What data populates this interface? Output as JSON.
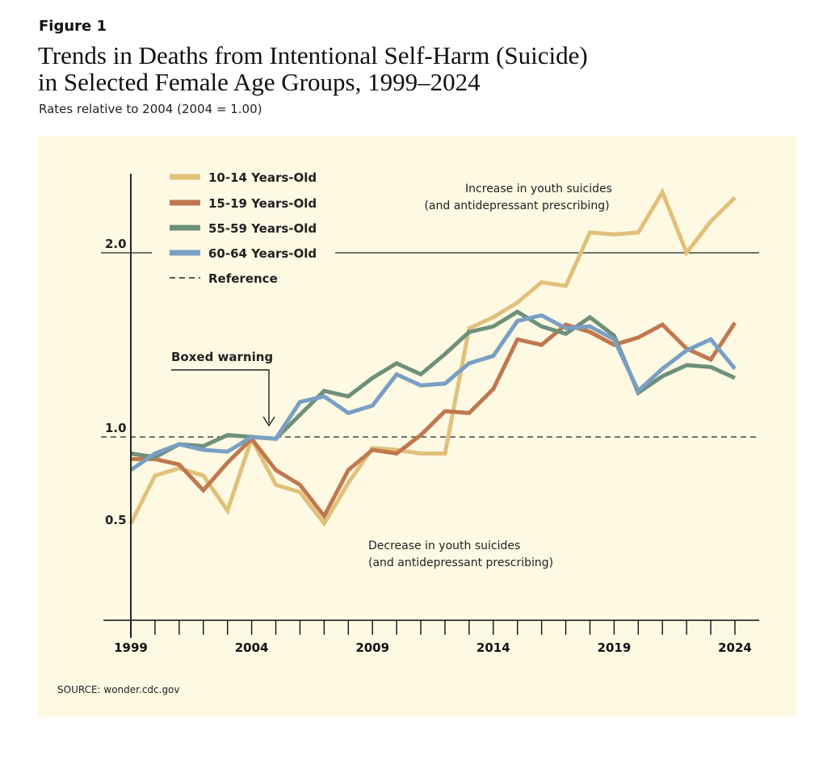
{
  "figure_label": "Figure 1",
  "title_line1": "Trends in Deaths from Intentional Self-Harm (Suicide)",
  "title_line2": "in Selected Female Age Groups, 1999–2024",
  "subtitle": "Rates relative to 2004 (2004 = 1.00)",
  "source": "SOURCE: wonder.cdc.gov",
  "chart_data": {
    "type": "line",
    "title": "Trends in Deaths from Intentional Self-Harm (Suicide) in Selected Female Age Groups, 1999–2024",
    "subtitle": "Rates relative to 2004 (2004 = 1.00)",
    "xlabel": "",
    "ylabel": "",
    "x": [
      1999,
      2000,
      2001,
      2002,
      2003,
      2004,
      2005,
      2006,
      2007,
      2008,
      2009,
      2010,
      2011,
      2012,
      2013,
      2014,
      2015,
      2016,
      2017,
      2018,
      2019,
      2020,
      2021,
      2022,
      2023,
      2024
    ],
    "x_ticks": [
      "1999",
      "2004",
      "2009",
      "2014",
      "2019",
      "2024"
    ],
    "y_ticks": [
      {
        "value": 0.5,
        "label": "0.5"
      },
      {
        "value": 1.0,
        "label": "1.0"
      },
      {
        "value": 2.0,
        "label": "2.0"
      }
    ],
    "xlim": [
      1999,
      2024
    ],
    "ylim": [
      0.49,
      2.5
    ],
    "grid": false,
    "legend_position": "top-left",
    "series": [
      {
        "name": "10-14 Years-Old",
        "color": "#e1c07a",
        "values": [
          0.53,
          0.79,
          0.83,
          0.79,
          0.6,
          0.99,
          0.74,
          0.7,
          0.53,
          0.75,
          0.94,
          0.93,
          0.91,
          0.91,
          1.59,
          1.65,
          1.73,
          1.84,
          1.82,
          2.11,
          2.1,
          2.11,
          2.33,
          2.0,
          2.17,
          2.3
        ]
      },
      {
        "name": "15-19 Years-Old",
        "color": "#c1784e",
        "values": [
          0.88,
          0.88,
          0.85,
          0.71,
          0.86,
          0.99,
          0.82,
          0.74,
          0.57,
          0.82,
          0.93,
          0.91,
          1.01,
          1.14,
          1.13,
          1.26,
          1.53,
          1.5,
          1.61,
          1.57,
          1.5,
          1.54,
          1.61,
          1.48,
          1.42,
          1.62
        ]
      },
      {
        "name": "55-59 Years-Old",
        "color": "#6e8f7a",
        "values": [
          0.91,
          0.89,
          0.96,
          0.95,
          1.01,
          1.0,
          0.99,
          1.12,
          1.25,
          1.22,
          1.32,
          1.4,
          1.34,
          1.45,
          1.57,
          1.6,
          1.68,
          1.6,
          1.56,
          1.65,
          1.55,
          1.24,
          1.33,
          1.39,
          1.38,
          1.32
        ]
      },
      {
        "name": "60-64 Years-Old",
        "color": "#7a9fc4",
        "values": [
          0.82,
          0.91,
          0.96,
          0.93,
          0.92,
          1.0,
          0.99,
          1.19,
          1.22,
          1.13,
          1.17,
          1.34,
          1.28,
          1.29,
          1.4,
          1.44,
          1.63,
          1.66,
          1.59,
          1.6,
          1.53,
          1.25,
          1.37,
          1.47,
          1.53,
          1.37
        ]
      }
    ],
    "reference": {
      "name": "Reference",
      "value": 1.0,
      "style": "dashed"
    },
    "annotations": [
      {
        "id": "boxed",
        "text": "Boxed warning",
        "x": 2005,
        "y": 1.0
      },
      {
        "id": "increase",
        "text_line1": "Increase in youth suicides",
        "text_line2": "(and antidepressant prescribing)",
        "x": 2019
      },
      {
        "id": "decrease",
        "text_line1": "Decrease in youth suicides",
        "text_line2": "(and antidepressant prescribing)",
        "x": 2009
      }
    ]
  }
}
